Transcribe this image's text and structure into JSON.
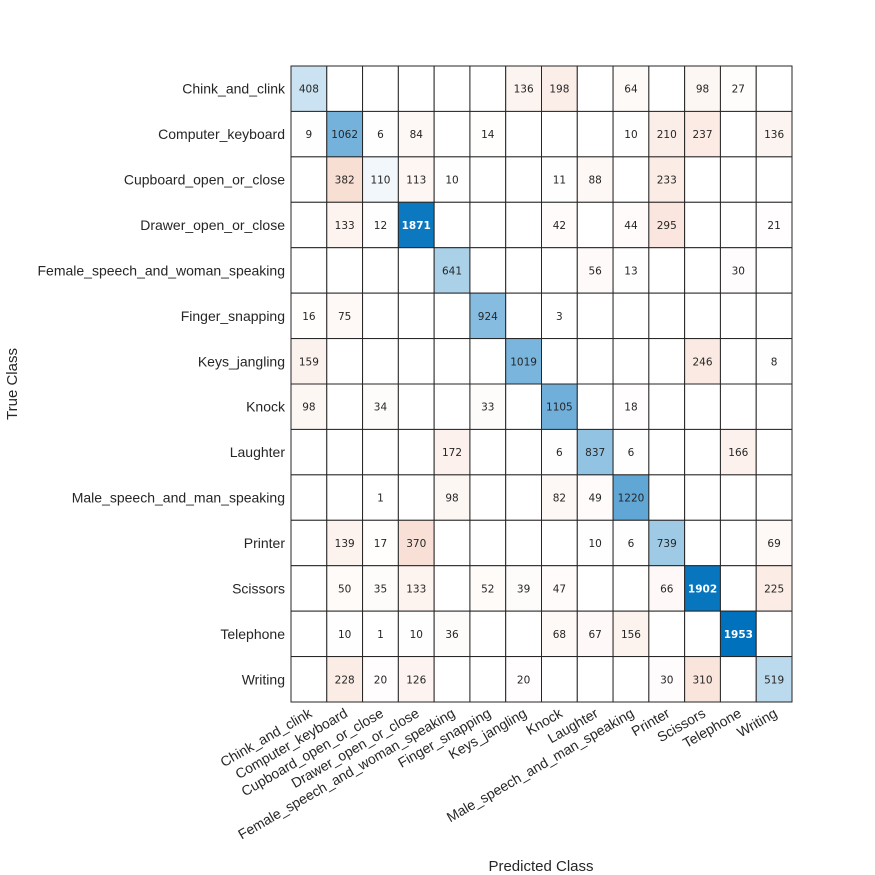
{
  "chart_data": {
    "type": "heatmap",
    "subtype": "confusion-matrix",
    "xlabel": "Predicted Class",
    "ylabel": "True Class",
    "classes": [
      "Chink_and_clink",
      "Computer_keyboard",
      "Cupboard_open_or_close",
      "Drawer_open_or_close",
      "Female_speech_and_woman_speaking",
      "Finger_snapping",
      "Keys_jangling",
      "Knock",
      "Laughter",
      "Male_speech_and_man_speaking",
      "Printer",
      "Scissors",
      "Telephone",
      "Writing"
    ],
    "matrix": [
      [
        408,
        0,
        0,
        0,
        0,
        0,
        136,
        198,
        0,
        64,
        0,
        98,
        27,
        0
      ],
      [
        9,
        1062,
        6,
        84,
        0,
        14,
        0,
        0,
        0,
        10,
        210,
        237,
        0,
        136
      ],
      [
        0,
        382,
        110,
        113,
        10,
        0,
        0,
        11,
        88,
        0,
        233,
        0,
        0,
        0
      ],
      [
        0,
        133,
        12,
        1871,
        0,
        0,
        0,
        42,
        0,
        44,
        295,
        0,
        0,
        21
      ],
      [
        0,
        0,
        0,
        0,
        641,
        0,
        0,
        0,
        56,
        13,
        0,
        0,
        30,
        0
      ],
      [
        16,
        75,
        0,
        0,
        0,
        924,
        0,
        3,
        0,
        0,
        0,
        0,
        0,
        0
      ],
      [
        159,
        0,
        0,
        0,
        0,
        0,
        1019,
        0,
        0,
        0,
        0,
        246,
        0,
        8
      ],
      [
        98,
        0,
        34,
        0,
        0,
        33,
        0,
        1105,
        0,
        18,
        0,
        0,
        0,
        0
      ],
      [
        0,
        0,
        0,
        0,
        172,
        0,
        0,
        6,
        837,
        6,
        0,
        0,
        166,
        0
      ],
      [
        0,
        0,
        1,
        0,
        98,
        0,
        0,
        82,
        49,
        1220,
        0,
        0,
        0,
        0
      ],
      [
        0,
        139,
        17,
        370,
        0,
        0,
        0,
        0,
        10,
        6,
        739,
        0,
        0,
        69
      ],
      [
        0,
        50,
        35,
        133,
        0,
        52,
        39,
        47,
        0,
        0,
        66,
        1902,
        0,
        225
      ],
      [
        0,
        10,
        1,
        10,
        36,
        0,
        0,
        68,
        67,
        156,
        0,
        0,
        1953,
        0
      ],
      [
        0,
        228,
        20,
        126,
        0,
        0,
        20,
        0,
        0,
        0,
        30,
        310,
        0,
        519
      ]
    ],
    "zero_cells_blank": true,
    "colors": {
      "diagonal": "#0072BD",
      "off_diagonal": "#D95319",
      "grid": "#262626"
    }
  }
}
